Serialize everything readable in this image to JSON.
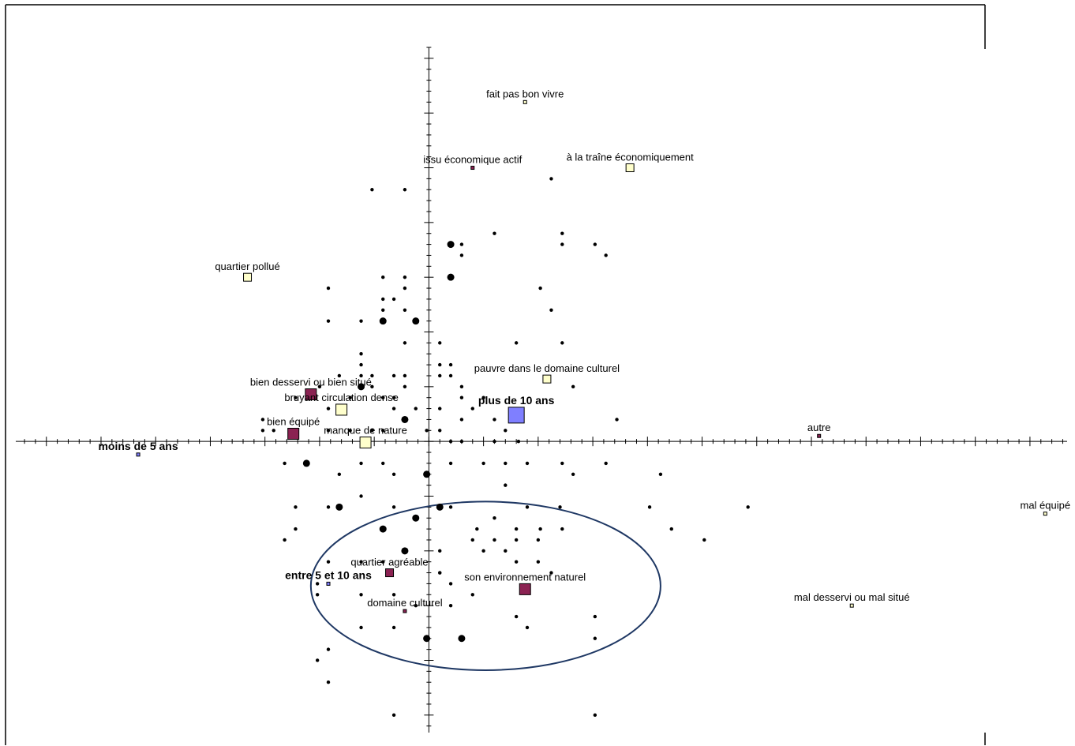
{
  "chart_data": {
    "type": "scatter",
    "title": "",
    "xlabel": "",
    "ylabel": "",
    "xlim": [
      -3.78,
      5.84
    ],
    "ylim": [
      -2.66,
      3.6
    ],
    "grid": false,
    "tick_step": 0.1,
    "colors": {
      "frame": "#000000",
      "axis": "#000000",
      "dot": "#000000",
      "maroon": "#8b2252",
      "cream": "#ffffcc",
      "blue": "#7f7fff",
      "ellipse": "#1f3864"
    },
    "labeled_points": [
      {
        "label": "fait pas bon vivre",
        "x": 0.88,
        "y": 3.1,
        "size": 4,
        "fill": "cream",
        "bold": false,
        "label_pos": "above"
      },
      {
        "label": "issu économique actif",
        "x": 0.4,
        "y": 2.5,
        "size": 4,
        "fill": "maroon",
        "bold": false,
        "label_pos": "above"
      },
      {
        "label": "à la traîne économiquement",
        "x": 1.84,
        "y": 2.5,
        "size": 10,
        "fill": "cream",
        "bold": false,
        "label_pos": "above"
      },
      {
        "label": "quartier pollué",
        "x": -1.66,
        "y": 1.5,
        "size": 10,
        "fill": "cream",
        "bold": false,
        "label_pos": "above"
      },
      {
        "label": "pauvre dans le domaine culturel",
        "x": 1.08,
        "y": 0.57,
        "size": 10,
        "fill": "cream",
        "bold": false,
        "label_pos": "above"
      },
      {
        "label": "bien desservi ou bien situé",
        "x": -1.08,
        "y": 0.43,
        "size": 14,
        "fill": "maroon",
        "bold": false,
        "label_pos": "above"
      },
      {
        "label": "bruyant circulation dense",
        "x": -0.8,
        "y": 0.29,
        "size": 14,
        "fill": "cream",
        "bold": false,
        "label_pos": "above"
      },
      {
        "label": "plus de 10 ans",
        "x": 0.8,
        "y": 0.24,
        "size": 20,
        "fill": "blue",
        "bold": true,
        "label_pos": "above"
      },
      {
        "label": "bien équipé",
        "x": -1.24,
        "y": 0.07,
        "size": 14,
        "fill": "maroon",
        "bold": false,
        "label_pos": "above"
      },
      {
        "label": "manque de nature",
        "x": -0.58,
        "y": -0.01,
        "size": 14,
        "fill": "cream",
        "bold": false,
        "label_pos": "above"
      },
      {
        "label": "autre",
        "x": 3.57,
        "y": 0.05,
        "size": 4,
        "fill": "maroon",
        "bold": false,
        "label_pos": "above"
      },
      {
        "label": "moins de 5 ans",
        "x": -2.66,
        "y": -0.12,
        "size": 4,
        "fill": "blue",
        "bold": true,
        "label_pos": "above"
      },
      {
        "label": "mal équipé",
        "x": 5.64,
        "y": -0.66,
        "size": 4,
        "fill": "cream",
        "bold": false,
        "label_pos": "above"
      },
      {
        "label": "quartier agréable",
        "x": -0.36,
        "y": -1.2,
        "size": 10,
        "fill": "maroon",
        "bold": false,
        "label_pos": "above"
      },
      {
        "label": "entre 5 et 10 ans",
        "x": -0.92,
        "y": -1.3,
        "size": 4,
        "fill": "blue",
        "bold": true,
        "label_pos": "above"
      },
      {
        "label": "son environnement naturel",
        "x": 0.88,
        "y": -1.35,
        "size": 14,
        "fill": "maroon",
        "bold": false,
        "label_pos": "above"
      },
      {
        "label": "domaine culturel",
        "x": -0.22,
        "y": -1.55,
        "size": 4,
        "fill": "maroon",
        "bold": false,
        "label_pos": "above"
      },
      {
        "label": "mal desservi ou mal situé",
        "x": 3.87,
        "y": -1.5,
        "size": 4,
        "fill": "cream",
        "bold": false,
        "label_pos": "above"
      }
    ],
    "small_dots": [
      [
        -0.52,
        2.3
      ],
      [
        -0.22,
        2.3
      ],
      [
        1.12,
        2.4
      ],
      [
        0.6,
        1.9
      ],
      [
        1.22,
        1.9
      ],
      [
        1.22,
        1.8
      ],
      [
        1.52,
        1.8
      ],
      [
        1.62,
        1.7
      ],
      [
        0.3,
        1.8
      ],
      [
        0.3,
        1.7
      ],
      [
        -0.92,
        1.4
      ],
      [
        -0.42,
        1.5
      ],
      [
        -0.22,
        1.5
      ],
      [
        -0.22,
        1.4
      ],
      [
        -0.42,
        1.3
      ],
      [
        -0.32,
        1.3
      ],
      [
        -0.42,
        1.2
      ],
      [
        -0.22,
        1.2
      ],
      [
        1.02,
        1.4
      ],
      [
        1.12,
        1.2
      ],
      [
        -0.92,
        1.1
      ],
      [
        -0.62,
        1.1
      ],
      [
        -0.22,
        0.9
      ],
      [
        0.1,
        0.9
      ],
      [
        0.8,
        0.9
      ],
      [
        1.22,
        0.9
      ],
      [
        -0.62,
        0.8
      ],
      [
        -0.62,
        0.7
      ],
      [
        0.1,
        0.7
      ],
      [
        0.2,
        0.7
      ],
      [
        0.1,
        0.6
      ],
      [
        0.2,
        0.6
      ],
      [
        -0.82,
        0.6
      ],
      [
        -0.62,
        0.6
      ],
      [
        -0.52,
        0.6
      ],
      [
        -0.32,
        0.6
      ],
      [
        -0.22,
        0.6
      ],
      [
        -0.52,
        0.5
      ],
      [
        -0.22,
        0.5
      ],
      [
        -1.0,
        0.5
      ],
      [
        1.32,
        0.5
      ],
      [
        0.3,
        0.5
      ],
      [
        -1.22,
        0.4
      ],
      [
        -0.72,
        0.4
      ],
      [
        -0.42,
        0.4
      ],
      [
        -0.32,
        0.4
      ],
      [
        0.3,
        0.4
      ],
      [
        0.4,
        0.3
      ],
      [
        0.1,
        0.3
      ],
      [
        0.5,
        0.4
      ],
      [
        -0.92,
        0.3
      ],
      [
        -0.82,
        0.3
      ],
      [
        -0.32,
        0.3
      ],
      [
        -0.12,
        0.3
      ],
      [
        0.3,
        0.2
      ],
      [
        0.6,
        0.2
      ],
      [
        1.72,
        0.2
      ],
      [
        0.7,
        0.1
      ],
      [
        0.1,
        0.1
      ],
      [
        -0.02,
        0.1
      ],
      [
        -1.52,
        0.2
      ],
      [
        -1.42,
        0.1
      ],
      [
        -0.92,
        0.1
      ],
      [
        -0.52,
        0.1
      ],
      [
        -0.42,
        0.1
      ],
      [
        -0.22,
        0.2
      ],
      [
        -1.52,
        0.1
      ],
      [
        -0.72,
        0.1
      ],
      [
        0.2,
        0.0
      ],
      [
        0.3,
        0.0
      ],
      [
        0.6,
        0.0
      ],
      [
        0.82,
        0.0
      ],
      [
        -1.32,
        -0.2
      ],
      [
        -0.62,
        -0.2
      ],
      [
        -0.42,
        -0.2
      ],
      [
        0.2,
        -0.2
      ],
      [
        0.5,
        -0.2
      ],
      [
        0.7,
        -0.2
      ],
      [
        0.9,
        -0.2
      ],
      [
        1.22,
        -0.2
      ],
      [
        1.62,
        -0.2
      ],
      [
        -0.82,
        -0.3
      ],
      [
        -0.32,
        -0.3
      ],
      [
        0.7,
        -0.4
      ],
      [
        1.32,
        -0.3
      ],
      [
        2.12,
        -0.3
      ],
      [
        -0.62,
        -0.5
      ],
      [
        -0.32,
        -0.6
      ],
      [
        -0.92,
        -0.6
      ],
      [
        -1.22,
        -0.6
      ],
      [
        0.2,
        -0.6
      ],
      [
        0.9,
        -0.6
      ],
      [
        1.2,
        -0.6
      ],
      [
        2.02,
        -0.6
      ],
      [
        2.92,
        -0.6
      ],
      [
        -1.32,
        -0.9
      ],
      [
        -1.22,
        -0.8
      ],
      [
        0.6,
        -0.7
      ],
      [
        0.44,
        -0.8
      ],
      [
        0.8,
        -0.8
      ],
      [
        1.02,
        -0.8
      ],
      [
        1.22,
        -0.8
      ],
      [
        2.22,
        -0.8
      ],
      [
        0.1,
        -1.0
      ],
      [
        0.1,
        -1.2
      ],
      [
        0.4,
        -0.9
      ],
      [
        0.6,
        -0.9
      ],
      [
        0.8,
        -0.9
      ],
      [
        1.0,
        -0.9
      ],
      [
        2.52,
        -0.9
      ],
      [
        0.5,
        -1.0
      ],
      [
        0.7,
        -1.0
      ],
      [
        0.8,
        -1.1
      ],
      [
        1.0,
        -1.1
      ],
      [
        -1.02,
        -1.3
      ],
      [
        -0.92,
        -1.1
      ],
      [
        -0.62,
        -1.1
      ],
      [
        -0.42,
        -1.1
      ],
      [
        0.1,
        -1.2
      ],
      [
        0.2,
        -1.3
      ],
      [
        1.12,
        -1.2
      ],
      [
        -0.62,
        -1.4
      ],
      [
        -1.02,
        -1.4
      ],
      [
        -0.32,
        -1.4
      ],
      [
        0.4,
        -1.4
      ],
      [
        0.2,
        -1.5
      ],
      [
        0.8,
        -1.6
      ],
      [
        -0.12,
        -1.5
      ],
      [
        1.52,
        -1.6
      ],
      [
        -0.62,
        -1.7
      ],
      [
        -0.32,
        -1.7
      ],
      [
        0.9,
        -1.7
      ],
      [
        1.52,
        -1.8
      ],
      [
        -0.92,
        -1.9
      ],
      [
        -1.02,
        -2.0
      ],
      [
        -0.92,
        -2.2
      ],
      [
        -0.32,
        -2.5
      ],
      [
        1.52,
        -2.5
      ]
    ],
    "big_dots": [
      [
        0.2,
        1.8
      ],
      [
        0.2,
        1.5
      ],
      [
        -0.42,
        1.1
      ],
      [
        -0.12,
        1.1
      ],
      [
        -0.62,
        0.5
      ],
      [
        -0.22,
        0.2
      ],
      [
        -1.12,
        -0.2
      ],
      [
        -0.02,
        -0.3
      ],
      [
        -0.82,
        -0.6
      ],
      [
        -0.12,
        -0.7
      ],
      [
        0.1,
        -0.6
      ],
      [
        -0.42,
        -0.8
      ],
      [
        -0.22,
        -1.0
      ],
      [
        -0.02,
        -1.8
      ],
      [
        0.3,
        -1.8
      ]
    ],
    "ellipse": {
      "cx": 0.52,
      "cy": -1.32,
      "rx": 1.6,
      "ry": 0.77
    }
  }
}
